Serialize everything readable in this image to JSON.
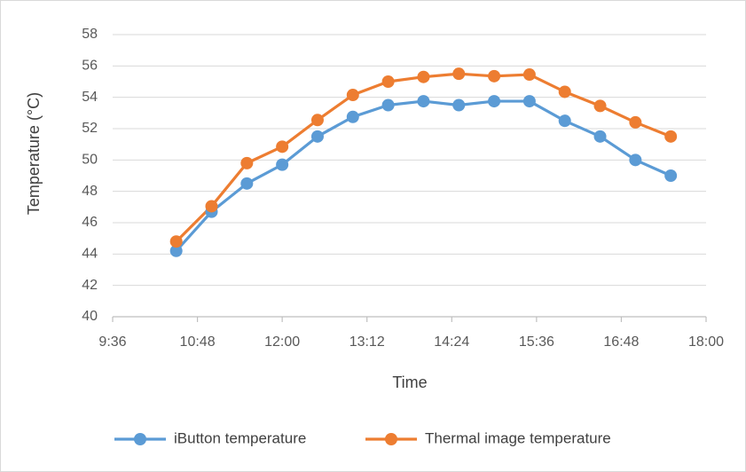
{
  "chart_data": {
    "type": "line",
    "xlabel": "Time",
    "ylabel": "Temperature (°C)",
    "ylim": [
      40,
      58
    ],
    "yticks": [
      "40",
      "42",
      "44",
      "46",
      "48",
      "50",
      "52",
      "54",
      "56",
      "58"
    ],
    "xlim": [
      "9:36",
      "18:00"
    ],
    "xticks": [
      "9:36",
      "10:48",
      "12:00",
      "13:12",
      "14:24",
      "15:36",
      "16:48",
      "18:00"
    ],
    "x": [
      "10:30",
      "11:00",
      "11:30",
      "12:00",
      "12:30",
      "13:00",
      "13:30",
      "14:00",
      "14:30",
      "15:00",
      "15:30",
      "16:00",
      "16:30",
      "17:00",
      "17:30"
    ],
    "series": [
      {
        "name": "iButton temperature",
        "color": "#5b9bd5",
        "values": [
          44.2,
          46.7,
          48.5,
          49.7,
          51.5,
          52.75,
          53.5,
          53.75,
          53.5,
          53.75,
          53.75,
          52.5,
          51.5,
          50.0,
          49.0
        ]
      },
      {
        "name": "Thermal image temperature",
        "color": "#ed7d31",
        "values": [
          44.8,
          47.05,
          49.8,
          50.85,
          52.55,
          54.15,
          55.0,
          55.3,
          55.5,
          55.35,
          55.45,
          54.35,
          53.45,
          52.4,
          51.5
        ]
      }
    ],
    "grid": "horizontal",
    "legend": "bottom-center"
  }
}
